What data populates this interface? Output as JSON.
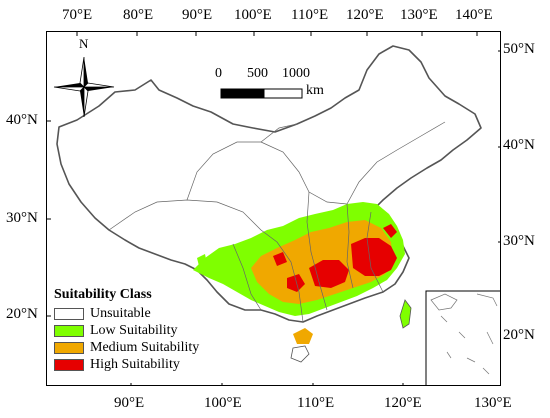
{
  "axes": {
    "top_labels": [
      "70°E",
      "80°E",
      "90°E",
      "100°E",
      "110°E",
      "120°E",
      "130°E",
      "140°E"
    ],
    "bottom_labels": [
      "90°E",
      "100°E",
      "110°E",
      "120°E",
      "130°E"
    ],
    "left_labels": [
      "40°N",
      "30°N",
      "20°N"
    ],
    "right_labels": [
      "50°N",
      "40°N",
      "30°N",
      "20°N"
    ]
  },
  "north_arrow": {
    "label": "N",
    "icon": "compass-rose-icon"
  },
  "scale_bar": {
    "ticks": [
      "0",
      "500",
      "1000"
    ],
    "unit": "km"
  },
  "legend": {
    "title": "Suitability Class",
    "items": [
      {
        "label": "Unsuitable",
        "color": "#ffffff"
      },
      {
        "label": "Low Suitability",
        "color": "#7fff00"
      },
      {
        "label": "Medium Suitability",
        "color": "#f0a800"
      },
      {
        "label": "High Suitability",
        "color": "#e60000"
      }
    ]
  }
}
